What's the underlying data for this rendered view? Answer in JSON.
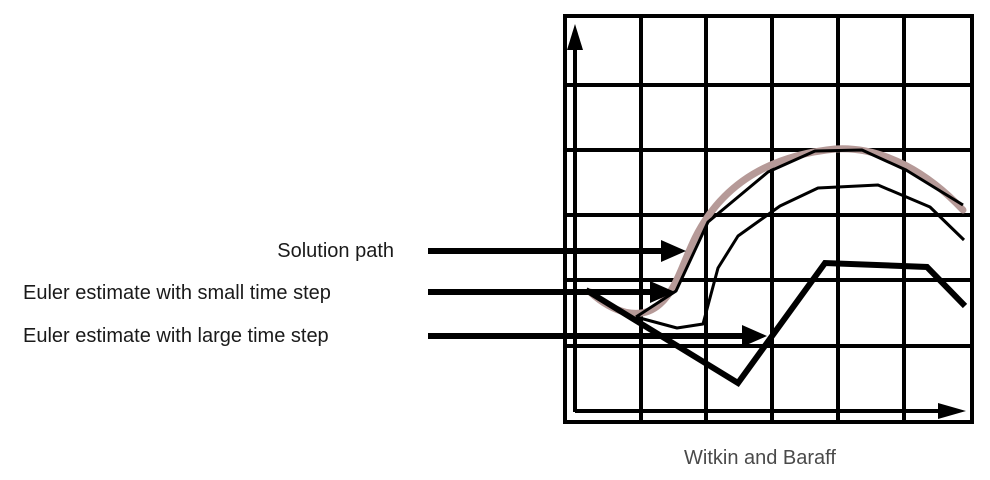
{
  "labels": {
    "solution_path": "Solution path",
    "euler_small": "Euler estimate with small time step",
    "euler_large": "Euler estimate with large time step"
  },
  "credit": "Witkin and Baraff",
  "colors": {
    "grid": "#000000",
    "solution_path": "#b69a98",
    "euler_small": "#000000",
    "euler_large": "#000000",
    "pointer_arrows": "#000000"
  }
}
